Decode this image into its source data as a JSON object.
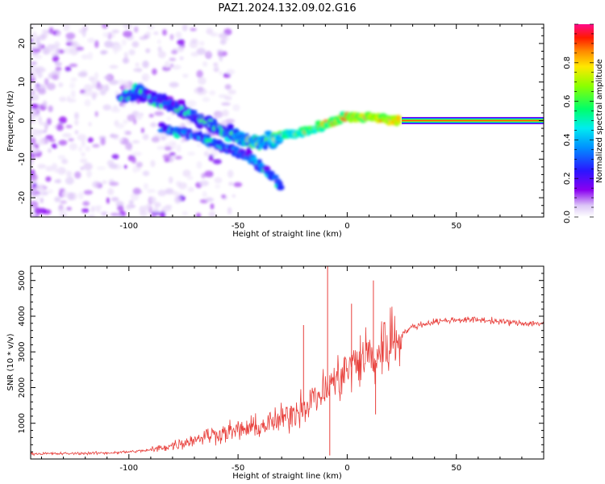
{
  "title": "PAZ1.2024.132.09.02.G16",
  "chart_data": [
    {
      "type": "heatmap",
      "title": "",
      "xlabel": "Height of straight line (km)",
      "ylabel": "Frequency (Hz)",
      "xlim": [
        -145,
        90
      ],
      "ylim": [
        -25,
        25
      ],
      "xticks": [
        -100,
        -50,
        0,
        50
      ],
      "yticks": [
        -20,
        -10,
        0,
        10,
        20
      ],
      "colorbar": {
        "label": "Normalized spectral amplitude",
        "range": [
          0,
          1
        ],
        "ticks": [
          0.0,
          0.2,
          0.4,
          0.6,
          0.8
        ],
        "tick_labels": [
          "0.0",
          "0.2",
          "0.4",
          "0.6",
          "0.8"
        ],
        "colormap": "white-purple-blue-cyan-green-yellow-red-pink"
      },
      "ridge": {
        "description": "main spectral ridge (Hz vs km)",
        "x": [
          -100,
          -95,
          -90,
          -80,
          -70,
          -60,
          -50,
          -40,
          -30,
          -20,
          -10,
          0,
          10,
          20,
          25,
          90
        ],
        "y": [
          6,
          8,
          6,
          4,
          1,
          -2,
          -4,
          -6,
          -4,
          -3,
          -1,
          1,
          1,
          0,
          0,
          0
        ]
      },
      "branch": {
        "description": "lower diverging branch (Hz vs km)",
        "x": [
          -85,
          -75,
          -65,
          -55,
          -45,
          -40,
          -35,
          -30
        ],
        "y": [
          -2,
          -3,
          -5,
          -7,
          -9,
          -12,
          -14,
          -17
        ]
      },
      "constant_line": {
        "x": [
          25,
          90
        ],
        "y": 0,
        "amplitude": 0.9
      }
    },
    {
      "type": "line",
      "title": "",
      "xlabel": "Height of straight line (km)",
      "ylabel": "SNR (10 * v/v)",
      "xlim": [
        -145,
        90
      ],
      "ylim": [
        0,
        5400
      ],
      "xticks": [
        -100,
        -50,
        0,
        50
      ],
      "yticks": [
        1000,
        2000,
        3000,
        4000,
        5000
      ],
      "color": "#e8403c",
      "series": [
        {
          "values_x": [
            -145,
            -130,
            -120,
            -110,
            -100,
            -90,
            -80,
            -75,
            -70,
            -65,
            -60,
            -55,
            -50,
            -45,
            -40,
            -35,
            -30,
            -25,
            -20,
            -15,
            -10,
            -8,
            -5,
            0,
            5,
            10,
            12,
            15,
            20,
            25,
            30,
            40,
            50,
            60,
            70,
            80,
            90
          ],
          "values_y": [
            150,
            150,
            160,
            170,
            200,
            250,
            380,
            450,
            550,
            650,
            700,
            750,
            800,
            850,
            900,
            1000,
            1100,
            1300,
            1500,
            1700,
            1900,
            2100,
            2200,
            2500,
            2700,
            3000,
            2600,
            3100,
            3300,
            3500,
            3700,
            3850,
            3900,
            3900,
            3850,
            3800,
            3800
          ]
        }
      ],
      "spikes": [
        {
          "x": -20,
          "y": 3750
        },
        {
          "x": -9,
          "y": 5400
        },
        {
          "x": -8,
          "y": 100
        },
        {
          "x": 2,
          "y": 4350
        },
        {
          "x": 12,
          "y": 5000
        },
        {
          "x": 13,
          "y": 1250
        }
      ]
    }
  ]
}
